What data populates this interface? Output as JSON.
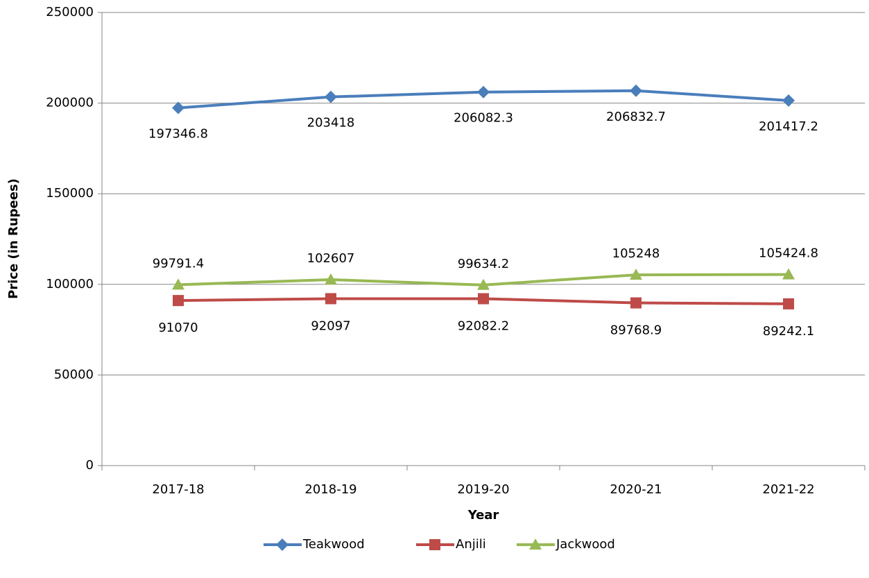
{
  "chart_data": {
    "type": "line",
    "categories": [
      "2017-18",
      "2018-19",
      "2019-20",
      "2020-21",
      "2021-22"
    ],
    "series": [
      {
        "name": "Teakwood",
        "color": "#4a7ebb",
        "marker": "diamond",
        "values": [
          197346.8,
          203418,
          206082.3,
          206832.7,
          201417.2
        ]
      },
      {
        "name": "Anjili",
        "color": "#be4b48",
        "marker": "square",
        "values": [
          91070,
          92097,
          92082.2,
          89768.9,
          89242.1
        ]
      },
      {
        "name": "Jackwood",
        "color": "#98b954",
        "marker": "triangle",
        "values": [
          99791.4,
          102607,
          99634.2,
          105248,
          105424.8
        ]
      }
    ],
    "xlabel": "Year",
    "ylabel": "Price (in Rupees)",
    "ylim": [
      0,
      250000
    ],
    "yticks": [
      0,
      50000,
      100000,
      150000,
      200000,
      250000
    ],
    "grid": true,
    "legend": "bottom"
  }
}
